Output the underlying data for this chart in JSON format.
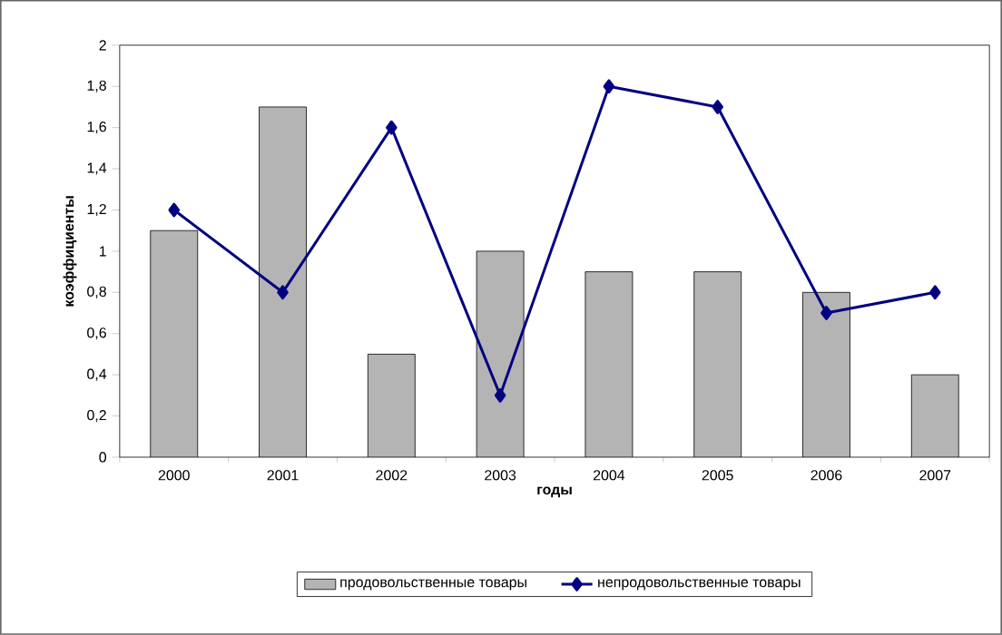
{
  "chart_data": {
    "type": "bar",
    "xlabel": "годы",
    "ylabel": "коэффициенты",
    "categories": [
      "2000",
      "2001",
      "2002",
      "2003",
      "2004",
      "2005",
      "2006",
      "2007"
    ],
    "series": [
      {
        "name": "продовольственные товары",
        "color": "#b4b4b4",
        "values": [
          1.1,
          1.7,
          0.5,
          1.0,
          0.9,
          0.9,
          0.8,
          0.4
        ]
      },
      {
        "name": "непродовольственные товары",
        "type": "line",
        "color": "#000080",
        "marker": "diamond",
        "values": [
          1.2,
          0.8,
          1.6,
          0.3,
          1.8,
          1.7,
          0.7,
          0.8
        ]
      }
    ],
    "ylim": [
      0,
      2
    ],
    "yticks": [
      0,
      {
        "value": 0.2,
        "label": "0,2"
      },
      {
        "value": 0.4,
        "label": "0,4"
      },
      {
        "value": 0.6,
        "label": "0,6"
      },
      {
        "value": 0.8,
        "label": "0,8"
      },
      1,
      {
        "value": 1.2,
        "label": "1,2"
      },
      {
        "value": 1.4,
        "label": "1,4"
      },
      {
        "value": 1.6,
        "label": "1,6"
      },
      {
        "value": 1.8,
        "label": "1,8"
      },
      2
    ],
    "grid": false,
    "legend": "bottom"
  }
}
